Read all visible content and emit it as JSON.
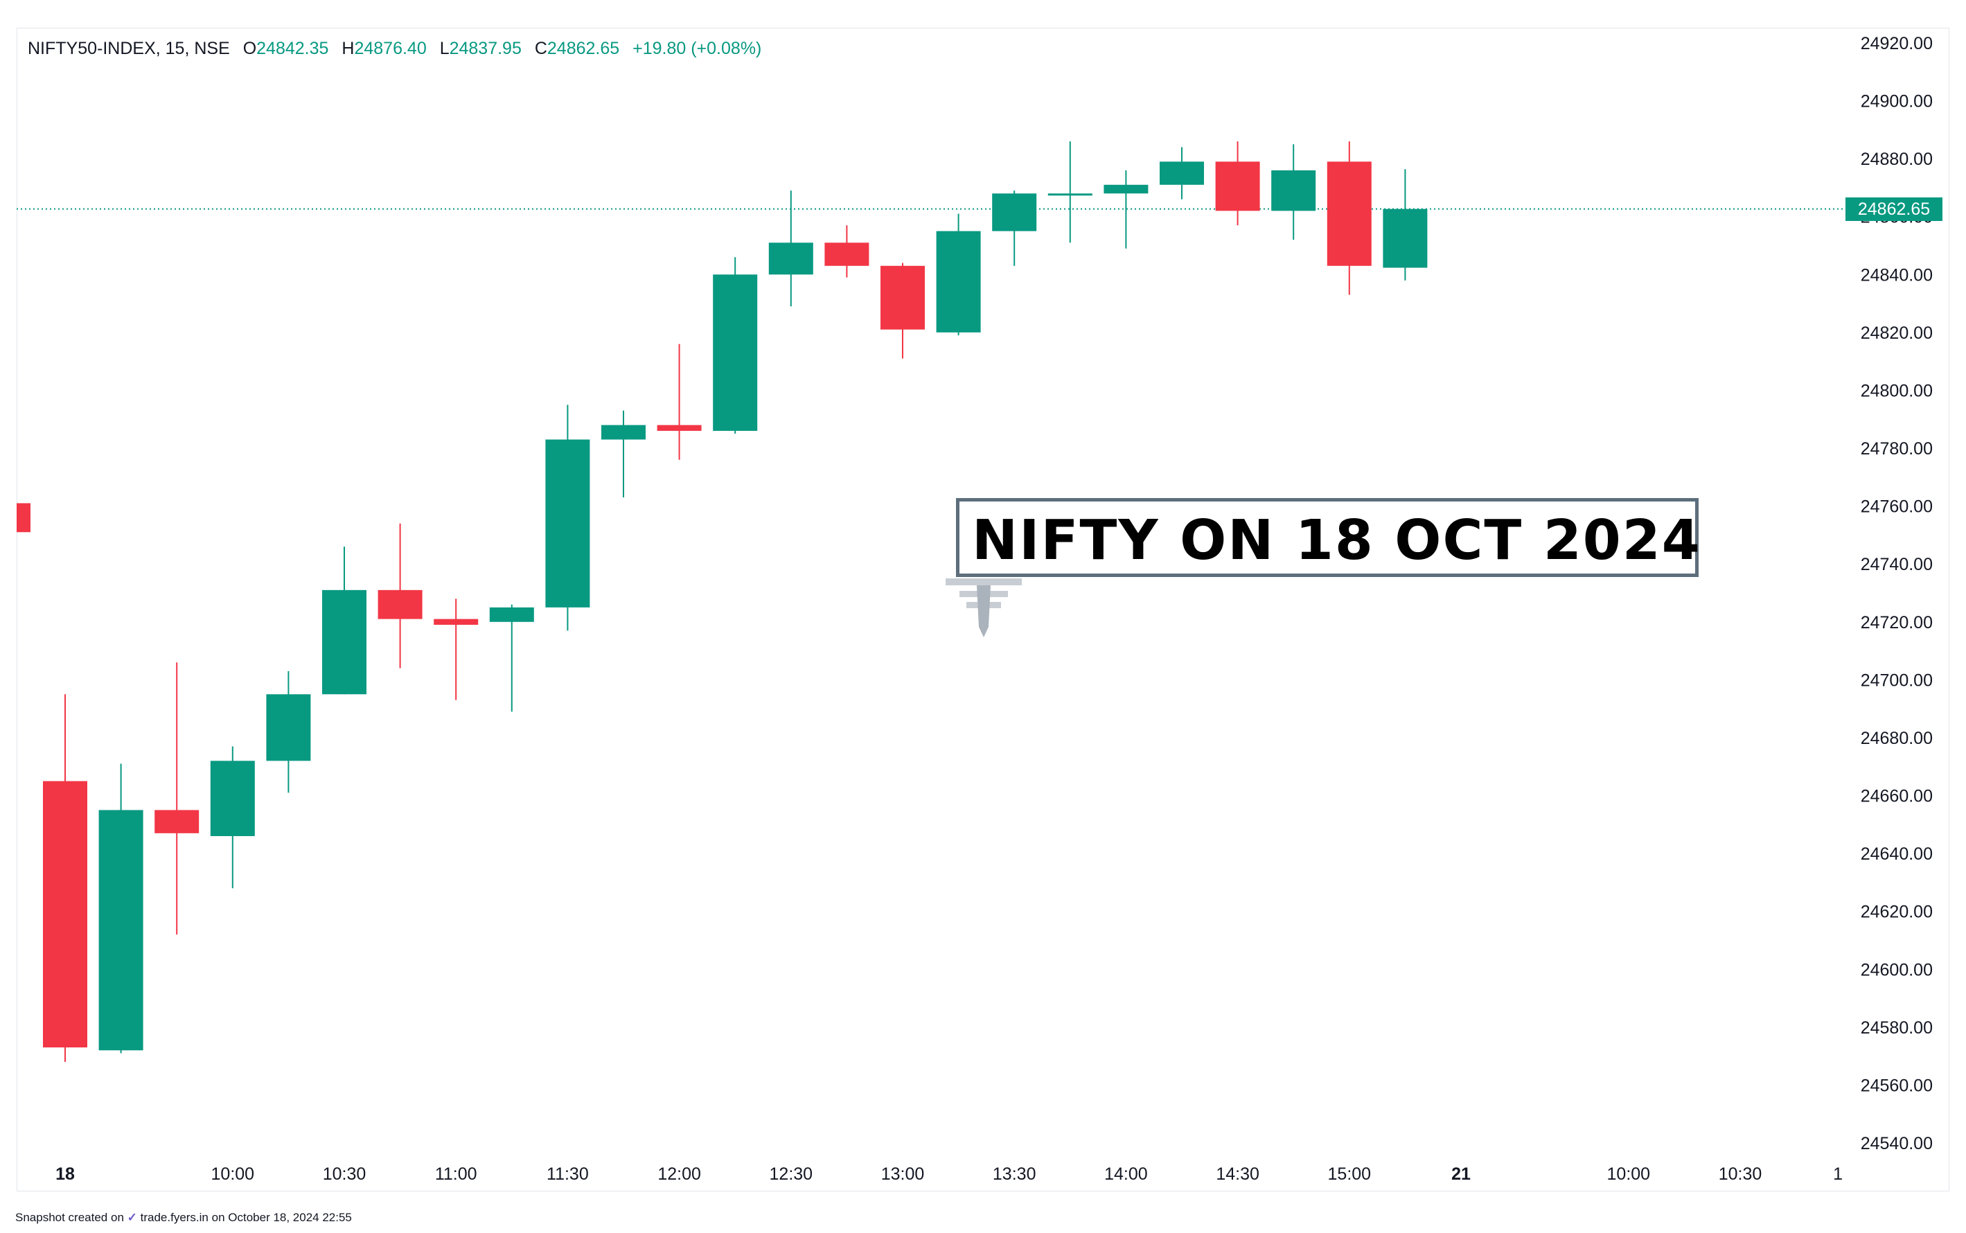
{
  "legend": {
    "symbol": "NIFTY50-INDEX, 15, NSE",
    "o_label": "O",
    "o_value": "24842.35",
    "h_label": "H",
    "h_value": "24876.40",
    "l_label": "L",
    "l_value": "24837.95",
    "c_label": "C",
    "c_value": "24862.65",
    "change": "+19.80 (+0.08%)"
  },
  "annotation": "NIFTY ON 18 OCT 2024",
  "last_price_label": "24862.65",
  "footer": {
    "prefix": "Snapshot created on",
    "site": "trade.fyers.in",
    "suffix": "on October 18, 2024 22:55"
  },
  "colors": {
    "up": "#089981",
    "down": "#f23645",
    "annotation_border": "#5d6e7c",
    "grid_border": "#e3e5ea"
  },
  "chart_data": {
    "type": "candlestick",
    "ylim": [
      24530,
      24925
    ],
    "y_ticks": [
      24540,
      24560,
      24580,
      24600,
      24620,
      24640,
      24660,
      24680,
      24700,
      24720,
      24740,
      24760,
      24780,
      24800,
      24820,
      24840,
      24860,
      24880,
      24900,
      24920
    ],
    "y_tick_labels": [
      "24540.00",
      "24560.00",
      "24580.00",
      "24600.00",
      "24620.00",
      "24640.00",
      "24660.00",
      "24680.00",
      "24700.00",
      "24720.00",
      "24740.00",
      "24760.00",
      "24780.00",
      "24800.00",
      "24820.00",
      "24840.00",
      "24860.00",
      "24880.00",
      "24900.00",
      "24920.00"
    ],
    "x_tick_labels": [
      {
        "label": "18",
        "slot": 0,
        "bold": true
      },
      {
        "label": "10:00",
        "slot": 3
      },
      {
        "label": "10:30",
        "slot": 5
      },
      {
        "label": "11:00",
        "slot": 7
      },
      {
        "label": "11:30",
        "slot": 9
      },
      {
        "label": "12:00",
        "slot": 11
      },
      {
        "label": "12:30",
        "slot": 13
      },
      {
        "label": "13:00",
        "slot": 15
      },
      {
        "label": "13:30",
        "slot": 17
      },
      {
        "label": "14:00",
        "slot": 19
      },
      {
        "label": "14:30",
        "slot": 21
      },
      {
        "label": "15:00",
        "slot": 23
      },
      {
        "label": "21",
        "slot": 25,
        "bold": true
      },
      {
        "label": "10:00",
        "slot": 28
      },
      {
        "label": "10:30",
        "slot": 30
      },
      {
        "label": "1",
        "slot": 31.75
      }
    ],
    "last_price": 24862.65,
    "prev_partial": {
      "slot": -0.75,
      "open": 24761,
      "close": 24751
    },
    "candles": [
      {
        "time": "09:15",
        "open": 24665,
        "high": 24695,
        "low": 24568,
        "close": 24573
      },
      {
        "time": "09:30",
        "open": 24572,
        "high": 24671,
        "low": 24571,
        "close": 24655
      },
      {
        "time": "09:45",
        "open": 24655,
        "high": 24706,
        "low": 24612,
        "close": 24647
      },
      {
        "time": "10:00",
        "open": 24646,
        "high": 24677,
        "low": 24628,
        "close": 24672
      },
      {
        "time": "10:15",
        "open": 24672,
        "high": 24703,
        "low": 24661,
        "close": 24695
      },
      {
        "time": "10:30",
        "open": 24695,
        "high": 24746,
        "low": 24695,
        "close": 24731
      },
      {
        "time": "10:45",
        "open": 24731,
        "high": 24754,
        "low": 24704,
        "close": 24721
      },
      {
        "time": "11:00",
        "open": 24721,
        "high": 24728,
        "low": 24693,
        "close": 24719
      },
      {
        "time": "11:15",
        "open": 24720,
        "high": 24726,
        "low": 24689,
        "close": 24725
      },
      {
        "time": "11:30",
        "open": 24725,
        "high": 24795,
        "low": 24717,
        "close": 24783
      },
      {
        "time": "11:45",
        "open": 24783,
        "high": 24793,
        "low": 24763,
        "close": 24788
      },
      {
        "time": "12:00",
        "open": 24788,
        "high": 24816,
        "low": 24776,
        "close": 24786
      },
      {
        "time": "12:15",
        "open": 24786,
        "high": 24846,
        "low": 24785,
        "close": 24840
      },
      {
        "time": "12:30",
        "open": 24840,
        "high": 24869,
        "low": 24829,
        "close": 24851
      },
      {
        "time": "12:45",
        "open": 24851,
        "high": 24857,
        "low": 24839,
        "close": 24843
      },
      {
        "time": "13:00",
        "open": 24843,
        "high": 24844,
        "low": 24811,
        "close": 24821
      },
      {
        "time": "13:15",
        "open": 24820,
        "high": 24861,
        "low": 24819,
        "close": 24855
      },
      {
        "time": "13:30",
        "open": 24855,
        "high": 24869,
        "low": 24843,
        "close": 24868
      },
      {
        "time": "13:45",
        "open": 24868,
        "high": 24886,
        "low": 24851,
        "close": 24868
      },
      {
        "time": "14:00",
        "open": 24868,
        "high": 24876,
        "low": 24849,
        "close": 24871
      },
      {
        "time": "14:15",
        "open": 24871,
        "high": 24884,
        "low": 24866,
        "close": 24879
      },
      {
        "time": "14:30",
        "open": 24879,
        "high": 24886,
        "low": 24857,
        "close": 24862
      },
      {
        "time": "14:45",
        "open": 24862,
        "high": 24885,
        "low": 24852,
        "close": 24876
      },
      {
        "time": "15:00",
        "open": 24879,
        "high": 24886,
        "low": 24833,
        "close": 24843
      },
      {
        "time": "15:15",
        "open": 24842.35,
        "high": 24876.4,
        "low": 24837.95,
        "close": 24862.65
      }
    ]
  }
}
